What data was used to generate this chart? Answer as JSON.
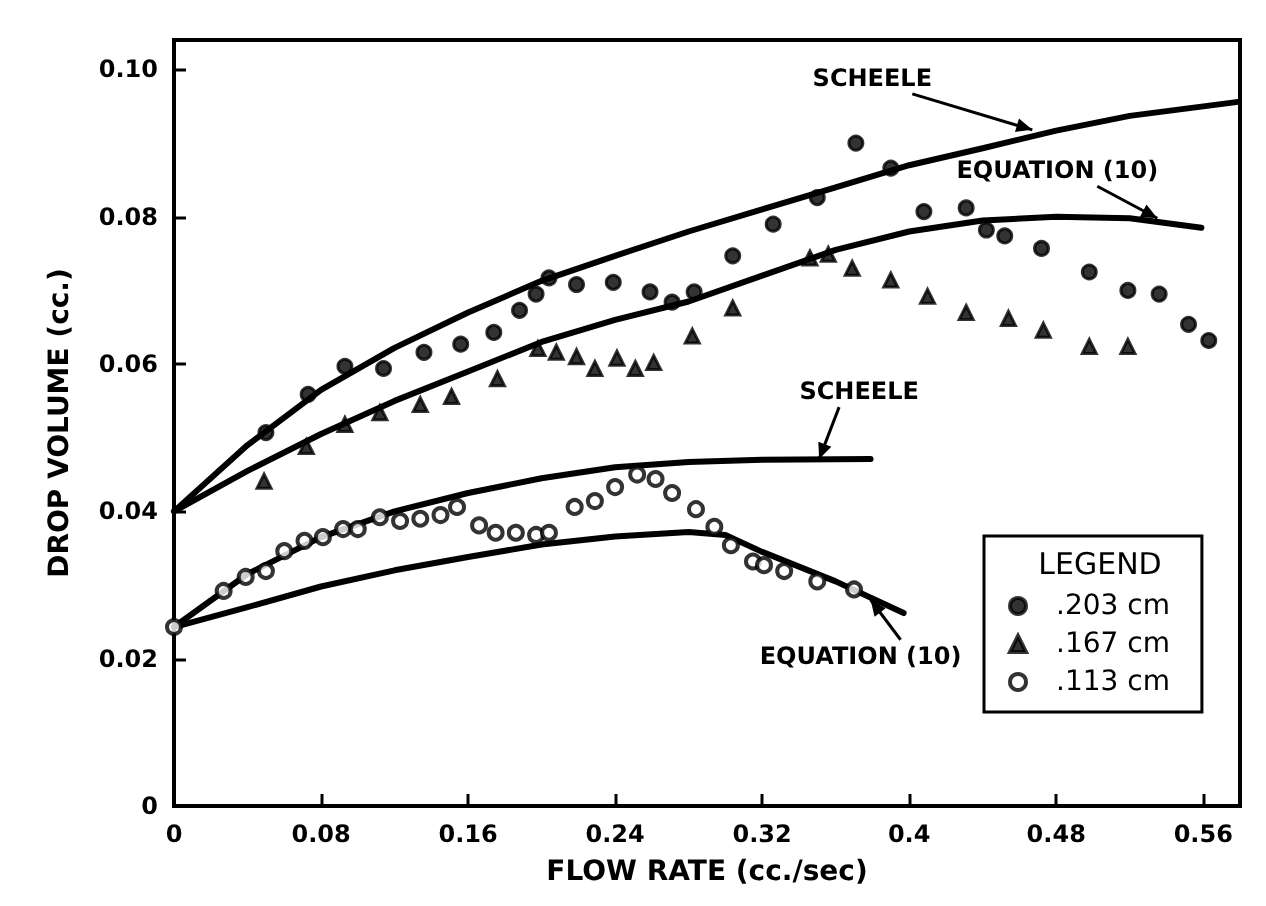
{
  "chart_data": {
    "type": "scatter",
    "xlabel": "FLOW RATE (cc./sec)",
    "ylabel": "DROP VOLUME (cc.)",
    "legend_title": "LEGEND",
    "legend": "bottom right",
    "grid": false,
    "xlim": [
      0,
      0.58
    ],
    "xticks": [
      0,
      0.08,
      0.16,
      0.24,
      0.32,
      0.4,
      0.48,
      0.56
    ],
    "ylim": [
      0,
      0.104
    ],
    "yticks": [
      0,
      0.02,
      0.04,
      0.06,
      0.08,
      {
        "value": 0.1,
        "label": "0.10"
      }
    ],
    "series": [
      {
        "name": ".203 cm",
        "marker": "circle",
        "color": "#000000",
        "x": [
          0.05,
          0.073,
          0.093,
          0.114,
          0.136,
          0.156,
          0.174,
          0.188,
          0.197,
          0.204,
          0.219,
          0.239,
          0.259,
          0.271,
          0.283,
          0.304,
          0.326,
          0.35,
          0.371,
          0.39,
          0.408,
          0.431,
          0.442,
          0.452,
          0.472,
          0.498,
          0.519,
          0.536,
          0.552,
          0.563
        ],
        "values": [
          0.0507,
          0.0559,
          0.0597,
          0.0594,
          0.0616,
          0.0627,
          0.0643,
          0.0673,
          0.0695,
          0.0717,
          0.0708,
          0.0711,
          0.0698,
          0.0684,
          0.0698,
          0.0747,
          0.079,
          0.0826,
          0.09,
          0.0866,
          0.0807,
          0.0812,
          0.0782,
          0.0774,
          0.0757,
          0.0725,
          0.07,
          0.0695,
          0.0654,
          0.0632
        ]
      },
      {
        "name": ".167 cm",
        "marker": "triangle",
        "color": "#000000",
        "x": [
          0.049,
          0.072,
          0.093,
          0.112,
          0.134,
          0.151,
          0.176,
          0.198,
          0.208,
          0.219,
          0.229,
          0.241,
          0.251,
          0.261,
          0.282,
          0.304,
          0.346,
          0.356,
          0.369,
          0.39,
          0.41,
          0.431,
          0.454,
          0.473,
          0.498,
          0.519
        ],
        "values": [
          0.0441,
          0.0488,
          0.0518,
          0.0534,
          0.0545,
          0.0556,
          0.058,
          0.0621,
          0.0616,
          0.061,
          0.0594,
          0.0608,
          0.0594,
          0.0602,
          0.0638,
          0.0676,
          0.0744,
          0.0749,
          0.073,
          0.0714,
          0.0692,
          0.067,
          0.0662,
          0.0646,
          0.0624,
          0.0624
        ]
      },
      {
        "name": ".113 cm",
        "marker": "open circle",
        "color": "#000000",
        "x": [
          0,
          0.027,
          0.039,
          0.05,
          0.06,
          0.071,
          0.081,
          0.092,
          0.1,
          0.112,
          0.123,
          0.134,
          0.145,
          0.154,
          0.166,
          0.175,
          0.186,
          0.197,
          0.204,
          0.218,
          0.229,
          0.24,
          0.252,
          0.262,
          0.271,
          0.284,
          0.294,
          0.303,
          0.315,
          0.321,
          0.332,
          0.35,
          0.37
        ],
        "values": [
          0.0243,
          0.0292,
          0.0311,
          0.0319,
          0.0346,
          0.036,
          0.0365,
          0.0376,
          0.0376,
          0.0392,
          0.0387,
          0.039,
          0.0395,
          0.0406,
          0.0381,
          0.0371,
          0.0371,
          0.0368,
          0.0371,
          0.0406,
          0.0414,
          0.0433,
          0.045,
          0.0444,
          0.0425,
          0.0403,
          0.0379,
          0.0354,
          0.0332,
          0.0327,
          0.0319,
          0.0305,
          0.0294
        ]
      },
      {
        "type": "line",
        "marker": "none",
        "color": "#000000",
        "x": [
          0,
          0.04,
          0.08,
          0.12,
          0.16,
          0.2,
          0.24,
          0.28,
          0.32,
          0.36,
          0.4,
          0.44,
          0.48,
          0.52,
          0.579
        ],
        "values": [
          0.04,
          0.049,
          0.0565,
          0.0622,
          0.067,
          0.0713,
          0.0747,
          0.078,
          0.081,
          0.084,
          0.087,
          0.0893,
          0.0917,
          0.0937,
          0.0956
        ]
      },
      {
        "type": "line",
        "marker": "none",
        "color": "#000000",
        "x": [
          0,
          0.04,
          0.08,
          0.12,
          0.16,
          0.2,
          0.24,
          0.28,
          0.32,
          0.36,
          0.4,
          0.44,
          0.48,
          0.52,
          0.559
        ],
        "values": [
          0.04,
          0.0455,
          0.0505,
          0.055,
          0.059,
          0.063,
          0.066,
          0.0685,
          0.072,
          0.0755,
          0.078,
          0.0795,
          0.08,
          0.0798,
          0.0785
        ]
      },
      {
        "type": "line",
        "marker": "none",
        "color": "#000000",
        "x": [
          0,
          0.04,
          0.08,
          0.12,
          0.16,
          0.2,
          0.24,
          0.28,
          0.32,
          0.379
        ],
        "values": [
          0.0243,
          0.0315,
          0.0365,
          0.04,
          0.0425,
          0.0445,
          0.046,
          0.0467,
          0.047,
          0.0471
        ]
      },
      {
        "type": "line",
        "marker": "none",
        "color": "#000000",
        "x": [
          0,
          0.04,
          0.08,
          0.12,
          0.16,
          0.2,
          0.24,
          0.28,
          0.3,
          0.32,
          0.36,
          0.397
        ],
        "values": [
          0.0243,
          0.027,
          0.0298,
          0.032,
          0.0338,
          0.0355,
          0.0366,
          0.0372,
          0.0368,
          0.0345,
          0.0305,
          0.0262
        ]
      }
    ],
    "annotations": [
      {
        "text": "SCHEELE",
        "x": 0.467,
        "y": 0.0918
      },
      {
        "text": "EQUATION (10)",
        "x": 0.535,
        "y": 0.0798
      },
      {
        "text": "SCHEELE",
        "x": 0.351,
        "y": 0.0471
      },
      {
        "text": "EQUATION (10)",
        "x": 0.379,
        "y": 0.028
      }
    ]
  }
}
